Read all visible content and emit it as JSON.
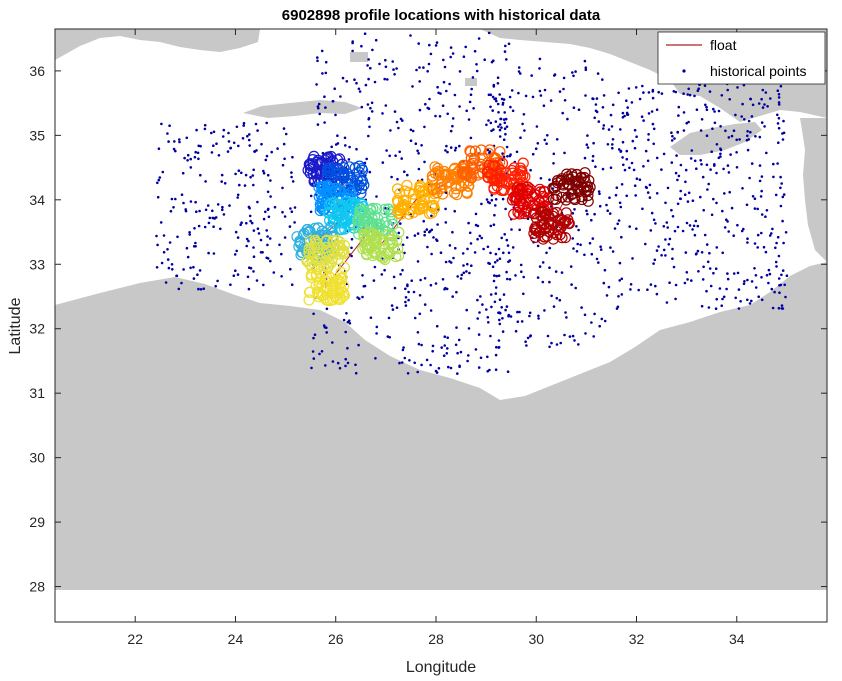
{
  "chart_data": {
    "type": "scatter",
    "title": "6902898 profile locations with historical data",
    "xlabel": "Longitude",
    "ylabel": "Latitude",
    "xlim": [
      20.4,
      35.8
    ],
    "ylim": [
      27.45,
      36.65
    ],
    "x_ticks": [
      22,
      24,
      26,
      28,
      30,
      32,
      34
    ],
    "y_ticks": [
      28,
      29,
      30,
      31,
      32,
      33,
      34,
      35,
      36
    ],
    "grid": false,
    "legend": {
      "placement": "top-right",
      "entries": [
        {
          "label": "float",
          "marker": "line",
          "color": "#b22222"
        },
        {
          "label": "historical points",
          "marker": "dot",
          "color": "#0000a0"
        }
      ]
    },
    "colors": {
      "land": "#c8c8c8",
      "sea": "#ffffff",
      "historical": "#0000a0",
      "float_line": "#b22222"
    },
    "float_track": [
      {
        "lon": 25.8,
        "lat": 34.45,
        "color": "#1a1acc"
      },
      {
        "lon": 26.2,
        "lat": 34.3,
        "color": "#0050e0"
      },
      {
        "lon": 26.0,
        "lat": 34.0,
        "color": "#0090ff"
      },
      {
        "lon": 26.2,
        "lat": 33.75,
        "color": "#10c8f0"
      },
      {
        "lon": 25.6,
        "lat": 33.35,
        "color": "#30b0e0"
      },
      {
        "lon": 25.8,
        "lat": 33.15,
        "color": "#e0e040"
      },
      {
        "lon": 25.8,
        "lat": 32.65,
        "color": "#f0e030"
      },
      {
        "lon": 26.8,
        "lat": 33.65,
        "color": "#60e090"
      },
      {
        "lon": 26.9,
        "lat": 33.3,
        "color": "#b0e050"
      },
      {
        "lon": 27.6,
        "lat": 34.0,
        "color": "#ffb000"
      },
      {
        "lon": 28.3,
        "lat": 34.3,
        "color": "#ff8000"
      },
      {
        "lon": 28.9,
        "lat": 34.55,
        "color": "#ff6000"
      },
      {
        "lon": 29.4,
        "lat": 34.35,
        "color": "#ff2000"
      },
      {
        "lon": 29.9,
        "lat": 34.0,
        "color": "#e00000"
      },
      {
        "lon": 30.3,
        "lat": 33.6,
        "color": "#b00000"
      },
      {
        "lon": 30.7,
        "lat": 34.2,
        "color": "#800000"
      }
    ]
  }
}
